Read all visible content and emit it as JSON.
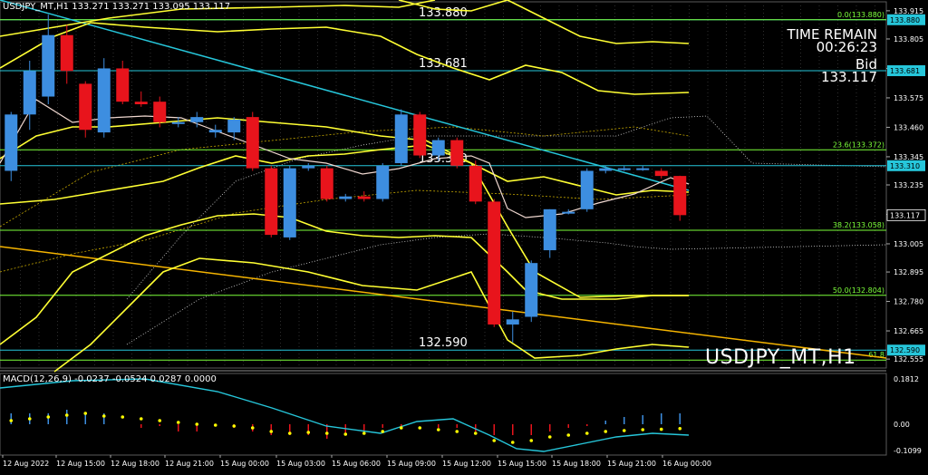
{
  "header": {
    "symbol_line": "USDJPY_MT,H1  133.271 133.271 133.095 133.117"
  },
  "macd_header": "MACD(12,26,9) -0.0237 -0.0524 0.0287 0.0000",
  "info": {
    "time_remain_label": "TIME REMAIN",
    "time_remain_value": "00:26:23",
    "bid_label": "Bid",
    "bid_value": "133.117"
  },
  "watermark": "USDJPY_MT,H1",
  "level_labels": [
    "133.880",
    "133.681",
    "133.310",
    "132.590"
  ],
  "fib_labels": [
    "0.0(133.880)",
    "23.6(133.372)",
    "38.2(133.058)",
    "50.0(132.804)",
    "61.8"
  ],
  "price_axis": {
    "ticks": [
      "133.915",
      "133.805",
      "133.690",
      "133.575",
      "133.460",
      "133.345",
      "133.235",
      "133.120",
      "133.005",
      "132.895",
      "132.780",
      "132.665",
      "132.555"
    ],
    "flags": {
      "a": "133.880",
      "b": "133.681",
      "c": "133.310",
      "d": "133.117",
      "e": "132.590"
    }
  },
  "macd_axis": {
    "ticks": [
      "0.1812",
      "0.00",
      "-0.1099"
    ]
  },
  "time_axis": [
    "12 Aug 2022",
    "12 Aug 15:00",
    "12 Aug 18:00",
    "12 Aug 21:00",
    "15 Aug 00:00",
    "15 Aug 03:00",
    "15 Aug 06:00",
    "15 Aug 09:00",
    "15 Aug 12:00",
    "15 Aug 15:00",
    "15 Aug 18:00",
    "15 Aug 21:00",
    "16 Aug 00:00"
  ],
  "colors": {
    "background": "#000000",
    "bull": "#3d8ee0",
    "bear": "#e8141c",
    "fib": "#7cff3a",
    "level": "#26c6da",
    "bands": "#ffff33",
    "trend": "#f5b400",
    "ma_fast": "#f0d8d0",
    "macd_signal": "#26c6da",
    "macd_dots": "#ffff00"
  },
  "chart_data": {
    "type": "candlestick",
    "symbol": "USDJPY_MT",
    "timeframe": "H1",
    "ylim": [
      132.52,
      133.95
    ],
    "candles": [
      {
        "o": 133.29,
        "h": 133.52,
        "l": 133.25,
        "c": 133.51
      },
      {
        "o": 133.51,
        "h": 133.72,
        "l": 133.45,
        "c": 133.68
      },
      {
        "o": 133.58,
        "h": 133.9,
        "l": 133.55,
        "c": 133.82
      },
      {
        "o": 133.82,
        "h": 133.86,
        "l": 133.63,
        "c": 133.68
      },
      {
        "o": 133.63,
        "h": 133.64,
        "l": 133.42,
        "c": 133.45
      },
      {
        "o": 133.44,
        "h": 133.73,
        "l": 133.42,
        "c": 133.69
      },
      {
        "o": 133.69,
        "h": 133.72,
        "l": 133.55,
        "c": 133.56
      },
      {
        "o": 133.56,
        "h": 133.6,
        "l": 133.54,
        "c": 133.55
      },
      {
        "o": 133.56,
        "h": 133.58,
        "l": 133.46,
        "c": 133.48
      },
      {
        "o": 133.48,
        "h": 133.5,
        "l": 133.46,
        "c": 133.48
      },
      {
        "o": 133.48,
        "h": 133.52,
        "l": 133.46,
        "c": 133.5
      },
      {
        "o": 133.44,
        "h": 133.47,
        "l": 133.42,
        "c": 133.45
      },
      {
        "o": 133.44,
        "h": 133.5,
        "l": 133.41,
        "c": 133.49
      },
      {
        "o": 133.5,
        "h": 133.52,
        "l": 133.29,
        "c": 133.3
      },
      {
        "o": 133.3,
        "h": 133.31,
        "l": 133.03,
        "c": 133.04
      },
      {
        "o": 133.03,
        "h": 133.31,
        "l": 133.02,
        "c": 133.3
      },
      {
        "o": 133.3,
        "h": 133.32,
        "l": 133.29,
        "c": 133.31
      },
      {
        "o": 133.3,
        "h": 133.31,
        "l": 133.17,
        "c": 133.18
      },
      {
        "o": 133.18,
        "h": 133.2,
        "l": 133.17,
        "c": 133.19
      },
      {
        "o": 133.19,
        "h": 133.21,
        "l": 133.17,
        "c": 133.18
      },
      {
        "o": 133.18,
        "h": 133.32,
        "l": 133.17,
        "c": 133.31
      },
      {
        "o": 133.32,
        "h": 133.53,
        "l": 133.31,
        "c": 133.51
      },
      {
        "o": 133.51,
        "h": 133.52,
        "l": 133.34,
        "c": 133.35
      },
      {
        "o": 133.35,
        "h": 133.42,
        "l": 133.33,
        "c": 133.41
      },
      {
        "o": 133.41,
        "h": 133.42,
        "l": 133.3,
        "c": 133.31
      },
      {
        "o": 133.31,
        "h": 133.33,
        "l": 133.16,
        "c": 133.17
      },
      {
        "o": 133.17,
        "h": 133.18,
        "l": 132.68,
        "c": 132.69
      },
      {
        "o": 132.69,
        "h": 132.74,
        "l": 132.62,
        "c": 132.71
      },
      {
        "o": 132.72,
        "h": 132.94,
        "l": 132.7,
        "c": 132.93
      },
      {
        "o": 132.98,
        "h": 133.14,
        "l": 132.95,
        "c": 133.14
      },
      {
        "o": 133.13,
        "h": 133.14,
        "l": 133.12,
        "c": 133.13
      },
      {
        "o": 133.14,
        "h": 133.3,
        "l": 133.13,
        "c": 133.29
      },
      {
        "o": 133.29,
        "h": 133.31,
        "l": 133.28,
        "c": 133.3
      },
      {
        "o": 133.3,
        "h": 133.31,
        "l": 133.29,
        "c": 133.3
      },
      {
        "o": 133.3,
        "h": 133.31,
        "l": 133.29,
        "c": 133.3
      },
      {
        "o": 133.29,
        "h": 133.3,
        "l": 133.26,
        "c": 133.27
      },
      {
        "o": 133.27,
        "h": 133.271,
        "l": 133.095,
        "c": 133.117
      }
    ],
    "levels": [
      133.88,
      133.681,
      133.31,
      132.59
    ],
    "fib_levels": [
      133.88,
      133.372,
      133.058,
      132.804,
      132.551
    ]
  }
}
